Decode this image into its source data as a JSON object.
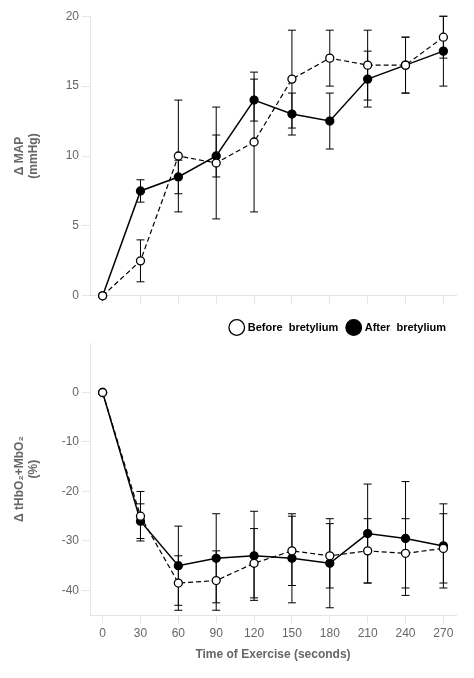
{
  "chart_data": [
    {
      "type": "line",
      "ylabel": "Δ MAP\n(mmHg)",
      "x": [
        0,
        30,
        60,
        90,
        120,
        150,
        180,
        210,
        240,
        270
      ],
      "series": [
        {
          "values": [
            0,
            2.5,
            10.0,
            9.5,
            11.0,
            15.5,
            17.0,
            16.5,
            16.5,
            18.5
          ],
          "yerr": [
            0,
            1.5,
            4.0,
            4.0,
            5.0,
            3.5,
            2.0,
            2.5,
            2.0,
            1.5
          ],
          "color": "#000000",
          "marker": "open_circle",
          "line_style": "dashed"
        },
        {
          "values": [
            0,
            7.5,
            8.5,
            10.0,
            14.0,
            13.0,
            12.5,
            15.5,
            16.5,
            17.5
          ],
          "yerr": [
            0,
            0.8,
            1.2,
            1.5,
            1.5,
            1.5,
            2.0,
            2.0,
            2.0,
            2.5
          ],
          "color": "#000000",
          "marker": "circle",
          "line_style": "solid"
        }
      ],
      "xlim": [
        -10,
        280
      ],
      "xticks": [
        0,
        30,
        60,
        90,
        120,
        150,
        180,
        210,
        240,
        270
      ],
      "ylim": [
        0,
        20
      ],
      "yticks": [
        0,
        5,
        10,
        15,
        20
      ],
      "grid": false,
      "tick_labels": "y"
    },
    {
      "type": "line",
      "xlabel": "Time of Exercise (seconds)",
      "ylabel": "Δ tHbO₂+MbO₂\n      (%)",
      "x": [
        0,
        30,
        60,
        90,
        120,
        150,
        180,
        210,
        240,
        270
      ],
      "series": [
        {
          "name": "Before  bretylium",
          "values": [
            0,
            -25.0,
            -38.5,
            -38.0,
            -34.5,
            -32.0,
            -33.0,
            -32.0,
            -32.5,
            -31.5
          ],
          "yerr": [
            0,
            5.0,
            5.5,
            6.0,
            7.0,
            7.0,
            6.5,
            6.5,
            7.0,
            7.0
          ],
          "color": "#000000",
          "marker": "open_circle",
          "line_style": "dashed"
        },
        {
          "name": "After  bretylium",
          "values": [
            0,
            -26.0,
            -35.0,
            -33.5,
            -33.0,
            -33.5,
            -34.5,
            -28.5,
            -29.5,
            -31.0
          ],
          "yerr": [
            0,
            3.5,
            8.0,
            9.0,
            9.0,
            9.0,
            9.0,
            10.0,
            11.5,
            8.5
          ],
          "color": "#000000",
          "marker": "circle",
          "line_style": "solid"
        }
      ],
      "xlim": [
        -10,
        280
      ],
      "xticks": [
        0,
        30,
        60,
        90,
        120,
        150,
        180,
        210,
        240,
        270
      ],
      "ylim": [
        -45,
        10
      ],
      "yticks": [
        0,
        -10,
        -20,
        -30,
        -40
      ],
      "grid": false,
      "legend": "upper right"
    }
  ]
}
